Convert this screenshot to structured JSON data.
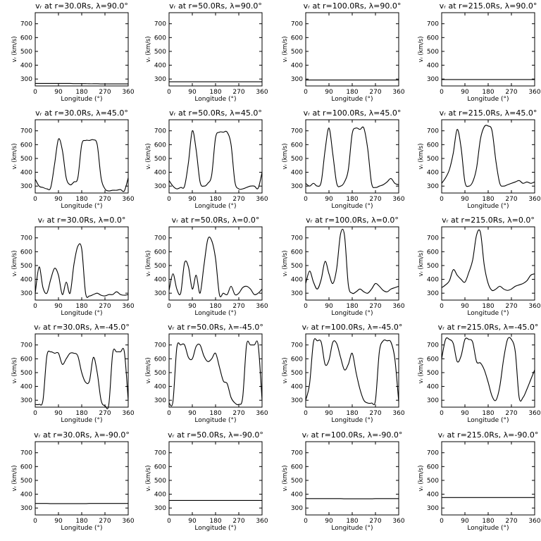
{
  "chart_data": {
    "type": "line",
    "layout": "5 rows x 4 columns",
    "x": [
      0,
      15,
      30,
      45,
      60,
      75,
      90,
      105,
      120,
      135,
      150,
      165,
      180,
      195,
      210,
      225,
      240,
      255,
      270,
      285,
      300,
      315,
      330,
      345,
      360
    ],
    "xticks": [
      "0",
      "90",
      "180",
      "270",
      "360"
    ],
    "yticks": [
      "300",
      "400",
      "500",
      "600",
      "700"
    ],
    "xlim": [
      0,
      360
    ],
    "ylim": [
      250,
      780
    ],
    "xlabel": "Longitude (°)",
    "ylabel": "vᵣ (km/s)",
    "panels": [
      {
        "title": "vᵣ at r=30.0Rs, λ=90.0°",
        "values": [
          268,
          268,
          268,
          268,
          268,
          268,
          268,
          268,
          268,
          268,
          267,
          267,
          267,
          267,
          266,
          266,
          266,
          265,
          265,
          265,
          265,
          265,
          265,
          265,
          265
        ]
      },
      {
        "title": "vᵣ at r=50.0Rs, λ=90.0°",
        "values": [
          280,
          280,
          280,
          280,
          280,
          280,
          280,
          280,
          280,
          280,
          280,
          280,
          280,
          280,
          280,
          280,
          280,
          280,
          280,
          280,
          280,
          280,
          280,
          280,
          280
        ]
      },
      {
        "title": "vᵣ at r=100.0Rs, λ=90.0°",
        "values": [
          293,
          293,
          293,
          293,
          293,
          293,
          293,
          293,
          293,
          293,
          293,
          293,
          293,
          293,
          293,
          293,
          293,
          293,
          293,
          293,
          293,
          293,
          293,
          293,
          293
        ]
      },
      {
        "title": "vᵣ at r=215.0Rs, λ=90.0°",
        "values": [
          296,
          296,
          296,
          296,
          296,
          296,
          296,
          296,
          296,
          296,
          296,
          296,
          296,
          296,
          296,
          296,
          296,
          296,
          296,
          296,
          296,
          296,
          296,
          296,
          296
        ]
      },
      {
        "title": "vᵣ at r=30.0Rs, λ=45.0°",
        "values": [
          350,
          300,
          290,
          280,
          290,
          460,
          640,
          560,
          360,
          310,
          330,
          360,
          600,
          630,
          630,
          635,
          600,
          360,
          280,
          265,
          270,
          270,
          275,
          265,
          360
        ]
      },
      {
        "title": "vᵣ at r=50.0Rs, λ=45.0°",
        "values": [
          340,
          300,
          280,
          290,
          300,
          470,
          700,
          560,
          330,
          300,
          320,
          380,
          650,
          690,
          690,
          690,
          600,
          330,
          280,
          280,
          290,
          300,
          300,
          285,
          400
        ]
      },
      {
        "title": "vᵣ at r=100.0Rs, λ=45.0°",
        "values": [
          320,
          300,
          320,
          300,
          330,
          560,
          720,
          530,
          320,
          300,
          330,
          420,
          680,
          720,
          710,
          720,
          570,
          320,
          290,
          300,
          310,
          330,
          355,
          320,
          310
        ]
      },
      {
        "title": "vᵣ at r=215.0Rs, λ=45.0°",
        "values": [
          320,
          360,
          420,
          540,
          710,
          580,
          330,
          300,
          330,
          430,
          640,
          730,
          735,
          700,
          480,
          320,
          300,
          310,
          320,
          330,
          340,
          320,
          330,
          320,
          330
        ]
      },
      {
        "title": "vᵣ at r=30.0Rs, λ=0.0°",
        "values": [
          300,
          490,
          340,
          300,
          400,
          480,
          430,
          290,
          380,
          300,
          510,
          640,
          620,
          300,
          280,
          290,
          300,
          285,
          280,
          290,
          290,
          310,
          290,
          285,
          290
        ]
      },
      {
        "title": "vᵣ at r=50.0Rs, λ=0.0°",
        "values": [
          320,
          440,
          330,
          300,
          520,
          490,
          330,
          430,
          300,
          500,
          690,
          680,
          550,
          290,
          300,
          290,
          350,
          290,
          300,
          340,
          350,
          330,
          290,
          300,
          330
        ]
      },
      {
        "title": "vᵣ at r=100.0Rs, λ=0.0°",
        "values": [
          370,
          460,
          380,
          330,
          400,
          530,
          440,
          370,
          480,
          730,
          720,
          360,
          300,
          310,
          330,
          310,
          300,
          330,
          370,
          350,
          320,
          310,
          330,
          340,
          350
        ]
      },
      {
        "title": "vᵣ at r=215.0Rs, λ=0.0°",
        "values": [
          340,
          360,
          390,
          470,
          430,
          400,
          380,
          450,
          540,
          720,
          740,
          500,
          370,
          320,
          330,
          350,
          330,
          320,
          330,
          350,
          360,
          370,
          390,
          430,
          440
        ]
      },
      {
        "title": "vᵣ at r=30.0Rs, λ=-45.0°",
        "values": [
          270,
          270,
          300,
          620,
          650,
          640,
          640,
          560,
          600,
          640,
          640,
          620,
          500,
          430,
          440,
          610,
          500,
          300,
          260,
          270,
          640,
          650,
          650,
          650,
          300
        ]
      },
      {
        "title": "vᵣ at r=50.0Rs, λ=-45.0°",
        "values": [
          280,
          290,
          680,
          700,
          700,
          610,
          600,
          690,
          700,
          620,
          580,
          600,
          640,
          540,
          440,
          420,
          320,
          280,
          270,
          320,
          700,
          700,
          700,
          700,
          300
        ]
      },
      {
        "title": "vᵣ at r=100.0Rs, λ=-45.0°",
        "values": [
          300,
          420,
          720,
          730,
          720,
          560,
          590,
          720,
          710,
          610,
          520,
          560,
          640,
          500,
          380,
          300,
          280,
          280,
          300,
          650,
          730,
          730,
          720,
          600,
          290
        ]
      },
      {
        "title": "vᵣ at r=215.0Rs, λ=-45.0°",
        "values": [
          600,
          740,
          740,
          710,
          580,
          620,
          740,
          740,
          720,
          580,
          570,
          520,
          430,
          330,
          300,
          400,
          600,
          740,
          740,
          650,
          320,
          320,
          380,
          450,
          520
        ]
      },
      {
        "title": "vᵣ at r=30.0Rs, λ=-90.0°",
        "values": [
          333,
          333,
          333,
          333,
          332,
          332,
          332,
          332,
          332,
          332,
          332,
          332,
          332,
          332,
          333,
          333,
          333,
          333,
          333,
          333,
          333,
          333,
          333,
          333,
          333
        ]
      },
      {
        "title": "vᵣ at r=50.0Rs, λ=-90.0°",
        "values": [
          355,
          355,
          355,
          355,
          355,
          355,
          355,
          355,
          355,
          355,
          355,
          355,
          355,
          355,
          355,
          355,
          355,
          355,
          355,
          355,
          355,
          355,
          355,
          355,
          355
        ]
      },
      {
        "title": "vᵣ at r=100.0Rs, λ=-90.0°",
        "values": [
          368,
          368,
          368,
          368,
          368,
          368,
          368,
          368,
          368,
          368,
          367,
          367,
          367,
          367,
          367,
          367,
          367,
          367,
          368,
          368,
          368,
          368,
          368,
          368,
          368
        ]
      },
      {
        "title": "vᵣ at r=215.0Rs, λ=-90.0°",
        "values": [
          376,
          376,
          376,
          376,
          376,
          376,
          376,
          376,
          376,
          376,
          376,
          376,
          376,
          376,
          376,
          376,
          376,
          376,
          376,
          376,
          376,
          376,
          376,
          376,
          376
        ]
      }
    ]
  }
}
